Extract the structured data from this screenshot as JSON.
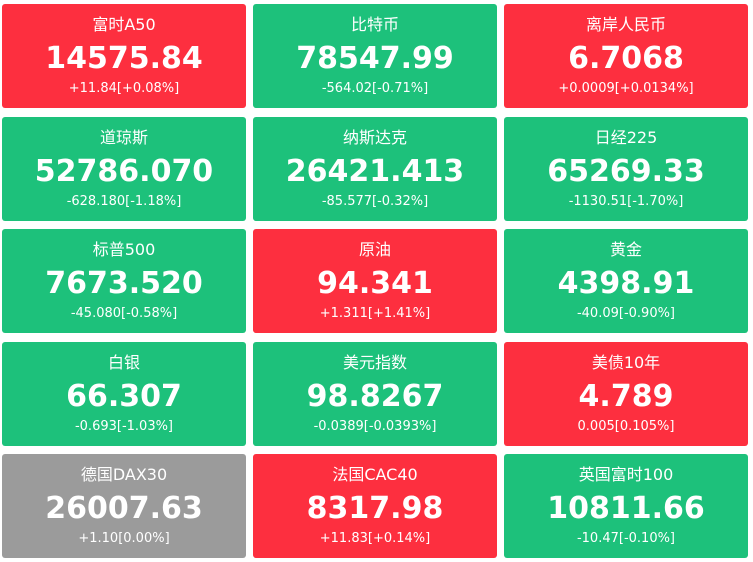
{
  "tiles": [
    {
      "name": "富时A50",
      "price": "14575.84",
      "change": "+11.84[+0.08%]",
      "color": "#fd2f3f"
    },
    {
      "name": "比特币",
      "price": "78547.99",
      "change": "-564.02[-0.71%]",
      "color": "#1dc17b"
    },
    {
      "name": "离岸人民币",
      "price": "6.7068",
      "change": "+0.0009[+0.0134%]",
      "color": "#fd2f3f"
    },
    {
      "name": "道琼斯",
      "price": "52786.070",
      "change": "-628.180[-1.18%]",
      "color": "#1dc17b"
    },
    {
      "name": "纳斯达克",
      "price": "26421.413",
      "change": "-85.577[-0.32%]",
      "color": "#1dc17b"
    },
    {
      "name": "日经225",
      "price": "65269.33",
      "change": "-1130.51[-1.70%]",
      "color": "#1dc17b"
    },
    {
      "name": "标普500",
      "price": "7673.520",
      "change": "-45.080[-0.58%]",
      "color": "#1dc17b"
    },
    {
      "name": "原油",
      "price": "94.341",
      "change": "+1.311[+1.41%]",
      "color": "#fd2f3f"
    },
    {
      "name": "黄金",
      "price": "4398.91",
      "change": "-40.09[-0.90%]",
      "color": "#1dc17b"
    },
    {
      "name": "白银",
      "price": "66.307",
      "change": "-0.693[-1.03%]",
      "color": "#1dc17b"
    },
    {
      "name": "美元指数",
      "price": "98.8267",
      "change": "-0.0389[-0.0393%]",
      "color": "#1dc17b"
    },
    {
      "name": "美债10年",
      "price": "4.789",
      "change": "0.005[0.105%]",
      "color": "#fd2f3f"
    },
    {
      "name": "德国DAX30",
      "price": "26007.63",
      "change": "+1.10[0.00%]",
      "color": "#9b9b9b"
    },
    {
      "name": "法国CAC40",
      "price": "8317.98",
      "change": "+11.83[+0.14%]",
      "color": "#fd2f3f"
    },
    {
      "name": "英国富时100",
      "price": "10811.66",
      "change": "-10.47[-0.10%]",
      "color": "#1dc17b"
    }
  ]
}
